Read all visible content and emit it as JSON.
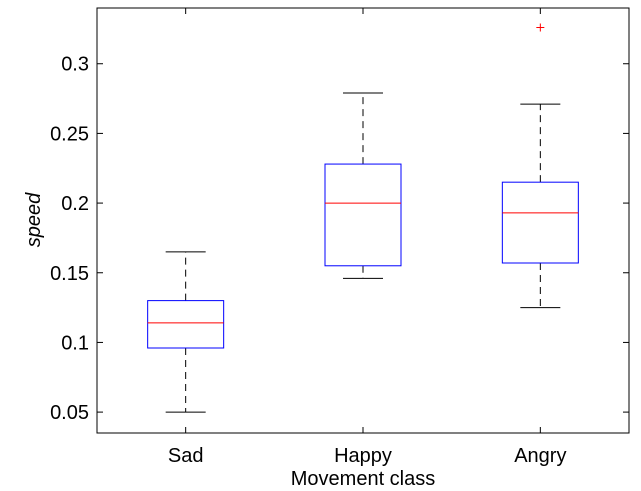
{
  "chart_data": {
    "type": "box",
    "title": "",
    "xlabel": "Movement class",
    "ylabel": "speed",
    "categories": [
      "Sad",
      "Happy",
      "Angry"
    ],
    "ylim": [
      0.035,
      0.34
    ],
    "yticks": [
      0.05,
      0.1,
      0.15,
      0.2,
      0.25,
      0.3
    ],
    "ytick_labels": [
      "0.05",
      "0.1",
      "0.15",
      "0.2",
      "0.25",
      "0.3"
    ],
    "boxes": [
      {
        "category": "Sad",
        "whisker_low": 0.05,
        "q1": 0.096,
        "median": 0.114,
        "q3": 0.13,
        "whisker_high": 0.165,
        "outliers": []
      },
      {
        "category": "Happy",
        "whisker_low": 0.146,
        "q1": 0.155,
        "median": 0.2,
        "q3": 0.228,
        "whisker_high": 0.279,
        "outliers": []
      },
      {
        "category": "Angry",
        "whisker_low": 0.125,
        "q1": 0.157,
        "median": 0.193,
        "q3": 0.215,
        "whisker_high": 0.271,
        "outliers": [
          0.326
        ]
      }
    ],
    "colors": {
      "box": "#0000ff",
      "median": "#ff0000",
      "whisker": "#000000",
      "outlier": "#ff0000"
    }
  }
}
